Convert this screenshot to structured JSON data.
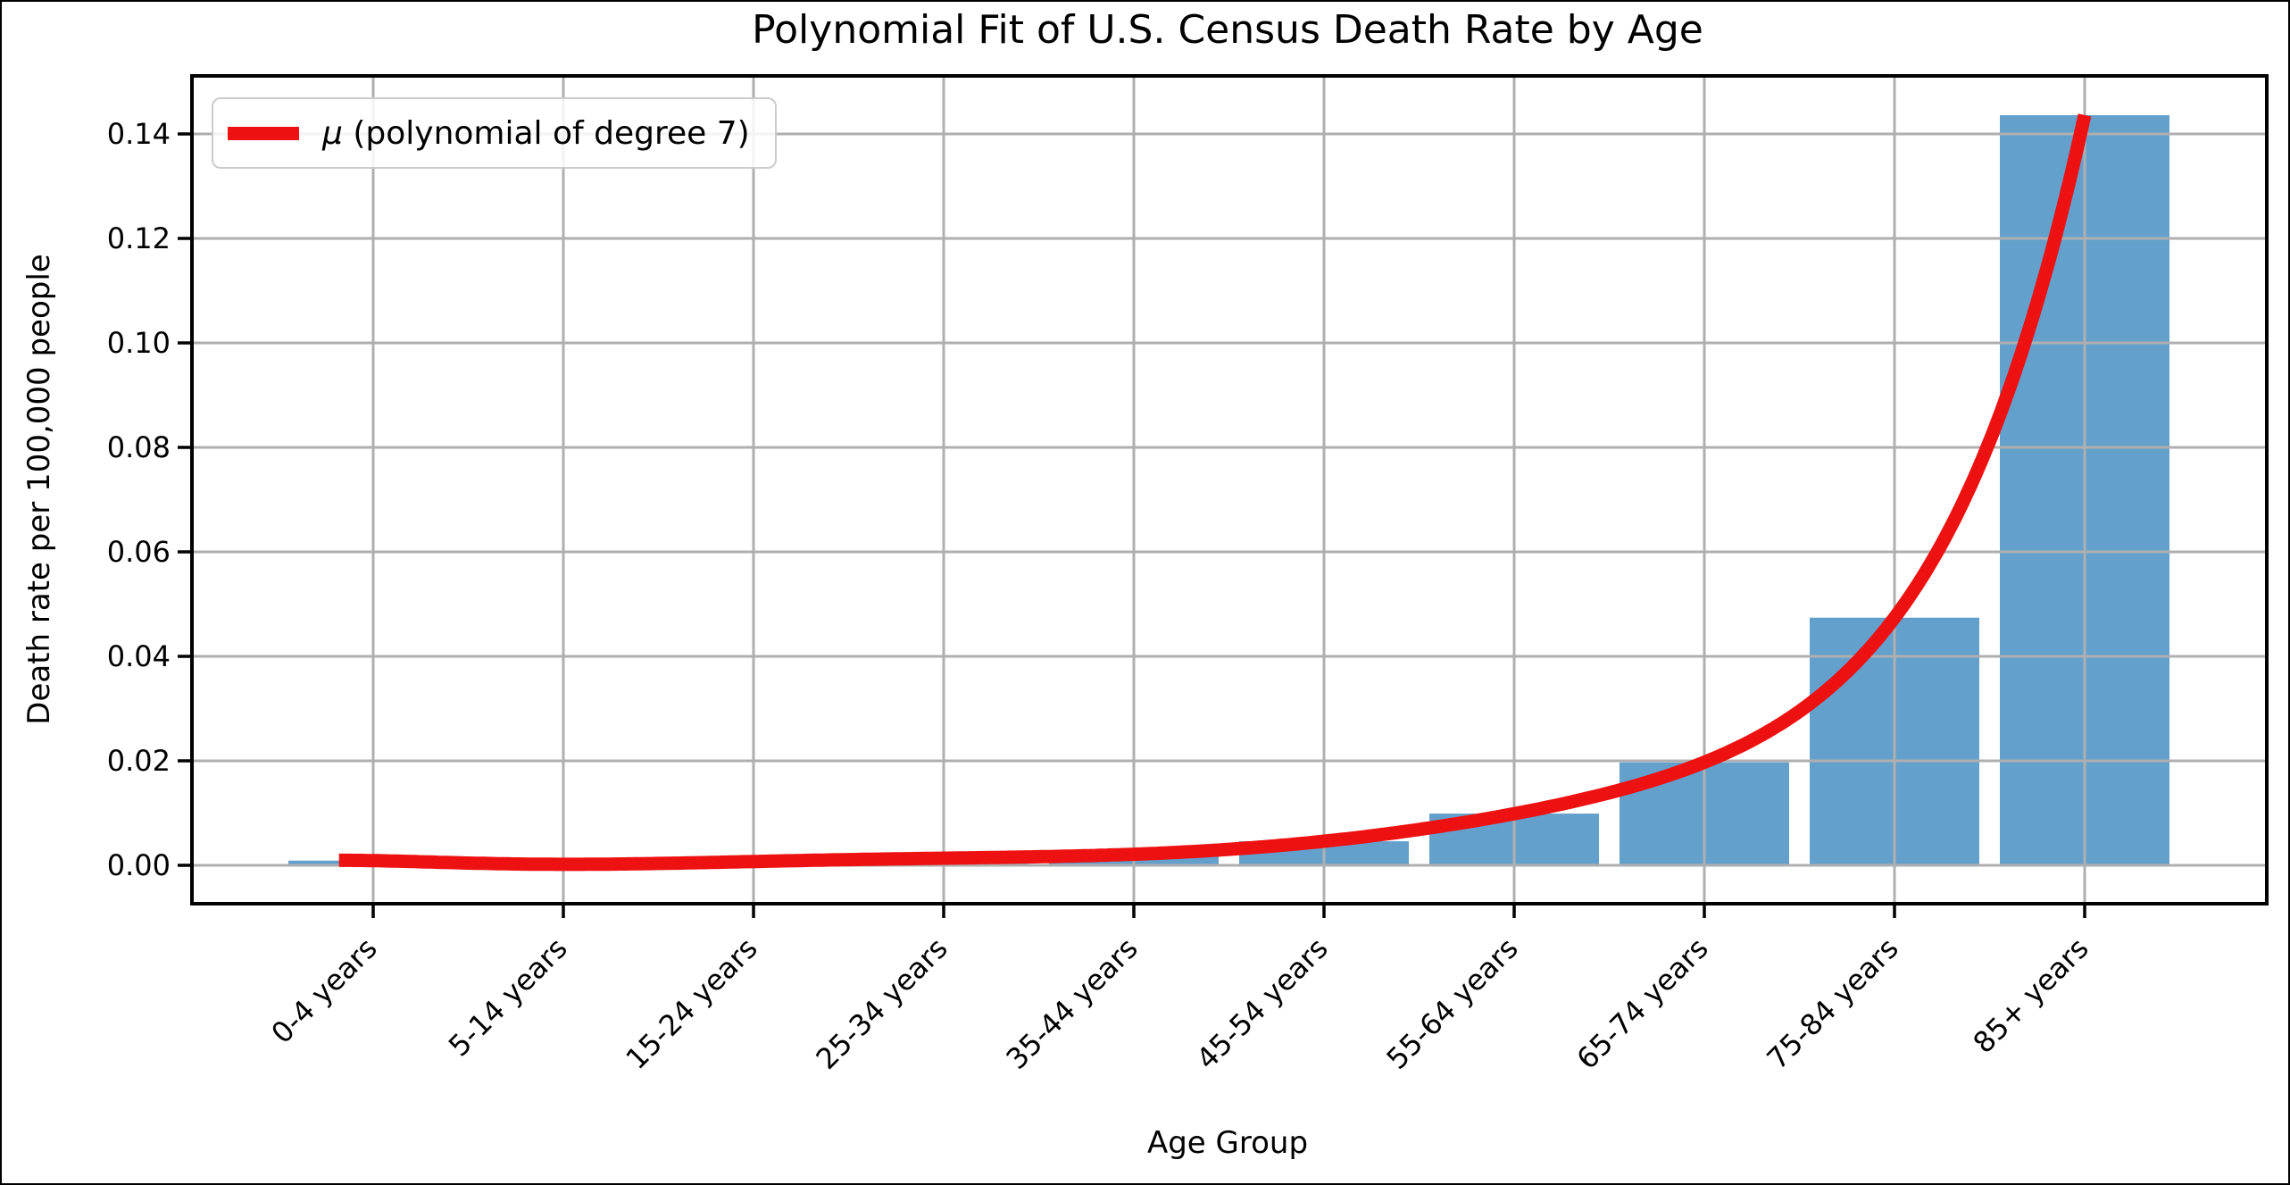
{
  "chart_data": {
    "type": "bar",
    "title": "Polynomial Fit of U.S. Census Death Rate by Age",
    "xlabel": "Age Group",
    "ylabel": "Death rate per 100,000 people",
    "categories": [
      "0-4 years",
      "5-14 years",
      "15-24 years",
      "25-34 years",
      "35-44 years",
      "45-54 years",
      "55-64 years",
      "65-74 years",
      "75-84 years",
      "85+ years"
    ],
    "values": [
      0.0009,
      0.0002,
      0.0007,
      0.0014,
      0.0021,
      0.0046,
      0.0099,
      0.0197,
      0.0474,
      0.1436
    ],
    "yticks": [
      "0.00",
      "0.02",
      "0.04",
      "0.06",
      "0.08",
      "0.10",
      "0.12",
      "0.14"
    ],
    "ylim": [
      -0.0074,
      0.1511
    ],
    "grid": true,
    "legend_position": "upper left",
    "fit_line": {
      "label_symbol": "μ",
      "label_rest": " (polynomial of degree 7)",
      "degree": 7
    },
    "colors": {
      "bar": "#63a0cc",
      "line": "#ee1111",
      "grid": "#afafaf",
      "spine": "#000000",
      "text": "#000000"
    }
  }
}
